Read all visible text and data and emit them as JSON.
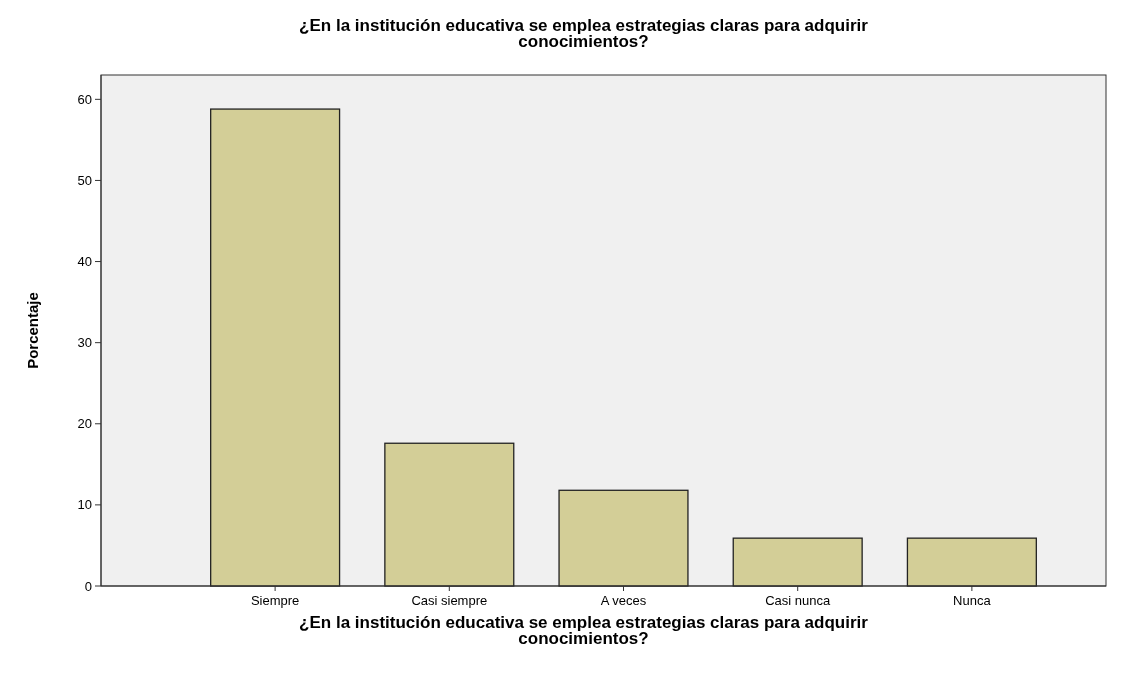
{
  "chart_data": {
    "type": "bar",
    "title": "¿En la institución educativa se emplea estrategias claras para adquirir conocimientos?",
    "xlabel": "¿En la institución educativa se emplea estrategias claras para adquirir conocimientos?",
    "ylabel": "Porcentaje",
    "categories": [
      "Siempre",
      "Casi siempre",
      "A veces",
      "Casi nunca",
      "Nunca"
    ],
    "values": [
      58.8,
      17.6,
      11.8,
      5.9,
      5.9
    ],
    "color": "#d3ce97",
    "ylim": [
      0,
      63
    ],
    "yticks": [
      0,
      10,
      20,
      30,
      40,
      50,
      60
    ],
    "grid": false
  }
}
